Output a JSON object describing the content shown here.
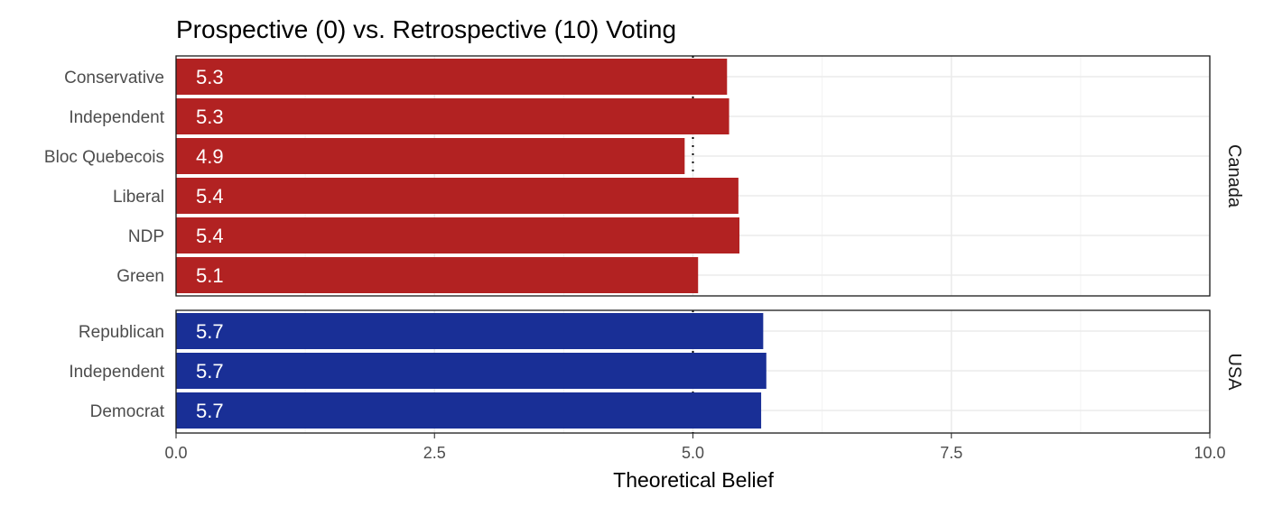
{
  "chart_data": {
    "type": "bar",
    "orientation": "horizontal",
    "title": "Prospective (0) vs. Retrospective (10) Voting",
    "xlabel": "Theoretical Belief",
    "ylabel": "",
    "xlim": [
      0,
      10
    ],
    "x_ticks": [
      0,
      2.5,
      5,
      7.5,
      10
    ],
    "x_tick_labels": [
      "0.0",
      "2.5",
      "5.0",
      "7.5",
      "10.0"
    ],
    "reference_line": 5,
    "grid": true,
    "facets": [
      {
        "name": "Canada",
        "color": "#b22222",
        "categories": [
          "Conservative",
          "Independent",
          "Bloc Quebecois",
          "Liberal",
          "NDP",
          "Green"
        ],
        "values": [
          5.33,
          5.35,
          4.92,
          5.44,
          5.45,
          5.05
        ],
        "labels": [
          "5.3",
          "5.3",
          "4.9",
          "5.4",
          "5.4",
          "5.1"
        ]
      },
      {
        "name": "USA",
        "color": "#192f96",
        "categories": [
          "Republican",
          "Independent",
          "Democrat"
        ],
        "values": [
          5.68,
          5.71,
          5.66
        ],
        "labels": [
          "5.7",
          "5.7",
          "5.7"
        ]
      }
    ]
  }
}
